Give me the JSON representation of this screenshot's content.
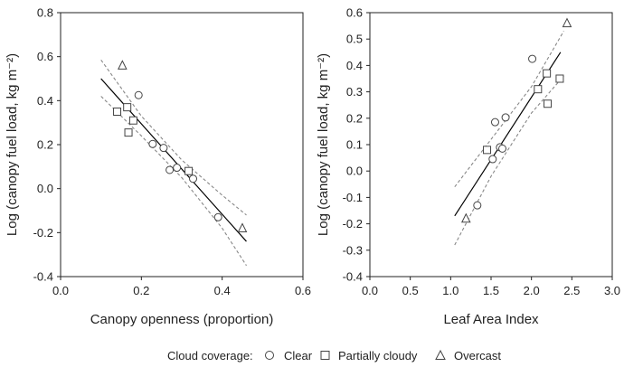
{
  "chart_data": [
    {
      "type": "scatter",
      "xlabel": "Canopy openness (proportion)",
      "ylabel": "Log (canopy fuel load, kg m⁻²)",
      "xlim": [
        0.0,
        0.6
      ],
      "ylim": [
        -0.4,
        0.8
      ],
      "xticks": [
        "0.0",
        "0.2",
        "0.4",
        "0.6"
      ],
      "xtick_values": [
        0.0,
        0.2,
        0.4,
        0.6
      ],
      "yticks": [
        "-0.4",
        "-0.2",
        "0.0",
        "0.2",
        "0.4",
        "0.6",
        "0.8"
      ],
      "ytick_values": [
        -0.4,
        -0.2,
        0.0,
        0.2,
        0.4,
        0.6,
        0.8
      ],
      "grid": false,
      "series": [
        {
          "name": "Clear",
          "marker": "circle",
          "points": [
            [
              0.193,
              0.425
            ],
            [
              0.228,
              0.203
            ],
            [
              0.255,
              0.185
            ],
            [
              0.27,
              0.085
            ],
            [
              0.288,
              0.095
            ],
            [
              0.328,
              0.045
            ],
            [
              0.39,
              -0.13
            ]
          ]
        },
        {
          "name": "Partially cloudy",
          "marker": "square",
          "points": [
            [
              0.14,
              0.35
            ],
            [
              0.165,
              0.37
            ],
            [
              0.168,
              0.255
            ],
            [
              0.18,
              0.31
            ],
            [
              0.317,
              0.08
            ]
          ]
        },
        {
          "name": "Overcast",
          "marker": "triangle",
          "points": [
            [
              0.153,
              0.56
            ],
            [
              0.45,
              -0.18
            ]
          ]
        }
      ],
      "fit_line": {
        "x": [
          0.1,
          0.46
        ],
        "y": [
          0.5,
          -0.24
        ]
      },
      "confidence_lower": {
        "x": [
          0.1,
          0.2,
          0.3,
          0.4,
          0.46
        ],
        "y": [
          0.42,
          0.24,
          0.05,
          -0.18,
          -0.35
        ]
      },
      "confidence_upper": {
        "x": [
          0.1,
          0.2,
          0.3,
          0.4,
          0.46
        ],
        "y": [
          0.585,
          0.33,
          0.13,
          -0.03,
          -0.12
        ]
      }
    },
    {
      "type": "scatter",
      "xlabel": "Leaf Area Index",
      "ylabel": "Log (canopy fuel load, kg m⁻²)",
      "xlim": [
        0.0,
        3.0
      ],
      "ylim": [
        -0.4,
        0.6
      ],
      "xticks": [
        "0.0",
        "0.5",
        "1.0",
        "1.5",
        "2.0",
        "2.5",
        "3.0"
      ],
      "xtick_values": [
        0.0,
        0.5,
        1.0,
        1.5,
        2.0,
        2.5,
        3.0
      ],
      "yticks": [
        "-0.4",
        "-0.3",
        "-0.2",
        "-0.1",
        "0.0",
        "0.1",
        "0.2",
        "0.3",
        "0.4",
        "0.5",
        "0.6"
      ],
      "ytick_values": [
        -0.4,
        -0.3,
        -0.2,
        -0.1,
        0.0,
        0.1,
        0.2,
        0.3,
        0.4,
        0.5,
        0.6
      ],
      "grid": false,
      "series": [
        {
          "name": "Clear",
          "marker": "circle",
          "points": [
            [
              1.33,
              -0.13
            ],
            [
              1.52,
              0.045
            ],
            [
              1.55,
              0.185
            ],
            [
              1.61,
              0.09
            ],
            [
              1.64,
              0.085
            ],
            [
              1.68,
              0.203
            ],
            [
              2.01,
              0.425
            ]
          ]
        },
        {
          "name": "Partially cloudy",
          "marker": "square",
          "points": [
            [
              1.45,
              0.08
            ],
            [
              2.08,
              0.31
            ],
            [
              2.19,
              0.37
            ],
            [
              2.2,
              0.255
            ],
            [
              2.35,
              0.35
            ]
          ]
        },
        {
          "name": "Overcast",
          "marker": "triangle",
          "points": [
            [
              1.19,
              -0.18
            ],
            [
              2.44,
              0.56
            ]
          ]
        }
      ],
      "fit_line": {
        "x": [
          1.05,
          2.36
        ],
        "y": [
          -0.17,
          0.45
        ]
      },
      "confidence_lower": {
        "x": [
          1.05,
          1.5,
          2.0,
          2.4
        ],
        "y": [
          -0.28,
          -0.02,
          0.22,
          0.36
        ]
      },
      "confidence_upper": {
        "x": [
          1.05,
          1.5,
          2.0,
          2.4
        ],
        "y": [
          -0.06,
          0.12,
          0.32,
          0.53
        ]
      }
    }
  ],
  "legend": {
    "title": "Cloud coverage:",
    "items": [
      {
        "label": "Clear",
        "marker": "circle"
      },
      {
        "label": "Partially cloudy",
        "marker": "square"
      },
      {
        "label": "Overcast",
        "marker": "triangle"
      }
    ]
  },
  "colors": {
    "axis": "#222222",
    "marker": "#444444",
    "fit_line": "#000000",
    "confidence": "#888888"
  }
}
